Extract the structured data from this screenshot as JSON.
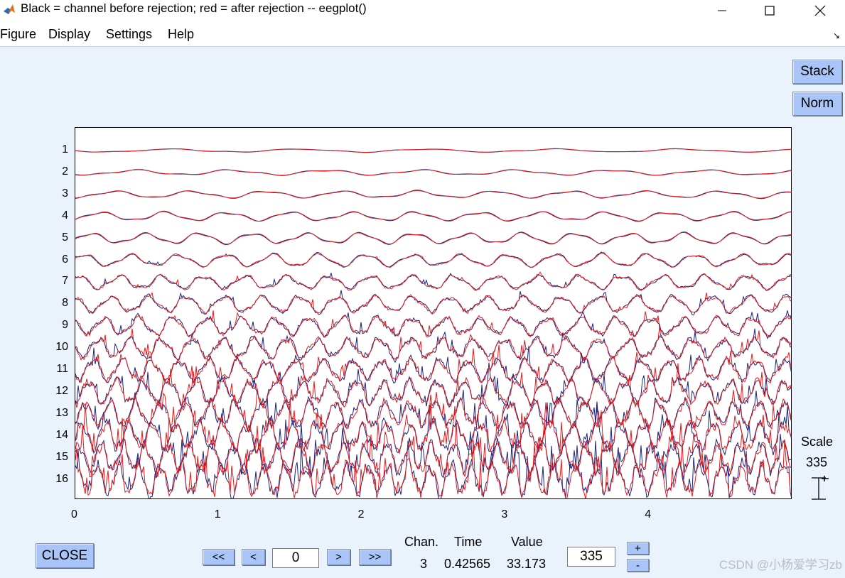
{
  "window": {
    "title": "Black = channel before rejection; red = after rejection -- eegplot()",
    "icon": "matlab-logo-icon"
  },
  "menu": [
    "Figure",
    "Display",
    "Settings",
    "Help"
  ],
  "buttons": {
    "stack": "Stack",
    "norm": "Norm",
    "close": "CLOSE",
    "first": "<<",
    "prev": "<",
    "next": ">",
    "last": ">>",
    "plus": "+",
    "minus": "-"
  },
  "plot": {
    "channels": [
      "1",
      "2",
      "3",
      "4",
      "5",
      "6",
      "7",
      "8",
      "9",
      "10",
      "11",
      "12",
      "13",
      "14",
      "15",
      "16"
    ],
    "x_ticks": [
      "0",
      "1",
      "2",
      "3",
      "4"
    ],
    "xlim": [
      0,
      5
    ],
    "colors": {
      "before": "#1a237e",
      "after": "#e8191b"
    }
  },
  "time_position": "0",
  "scale": {
    "label": "Scale",
    "value": "335",
    "icon": "scale-bar-icon"
  },
  "readout": {
    "chan_label": "Chan.",
    "time_label": "Time",
    "value_label": "Value",
    "chan": "3",
    "time": "0.42565",
    "value": "33.173"
  },
  "scale_input": "335",
  "watermark": "CSDN @小杨爱学习zb"
}
